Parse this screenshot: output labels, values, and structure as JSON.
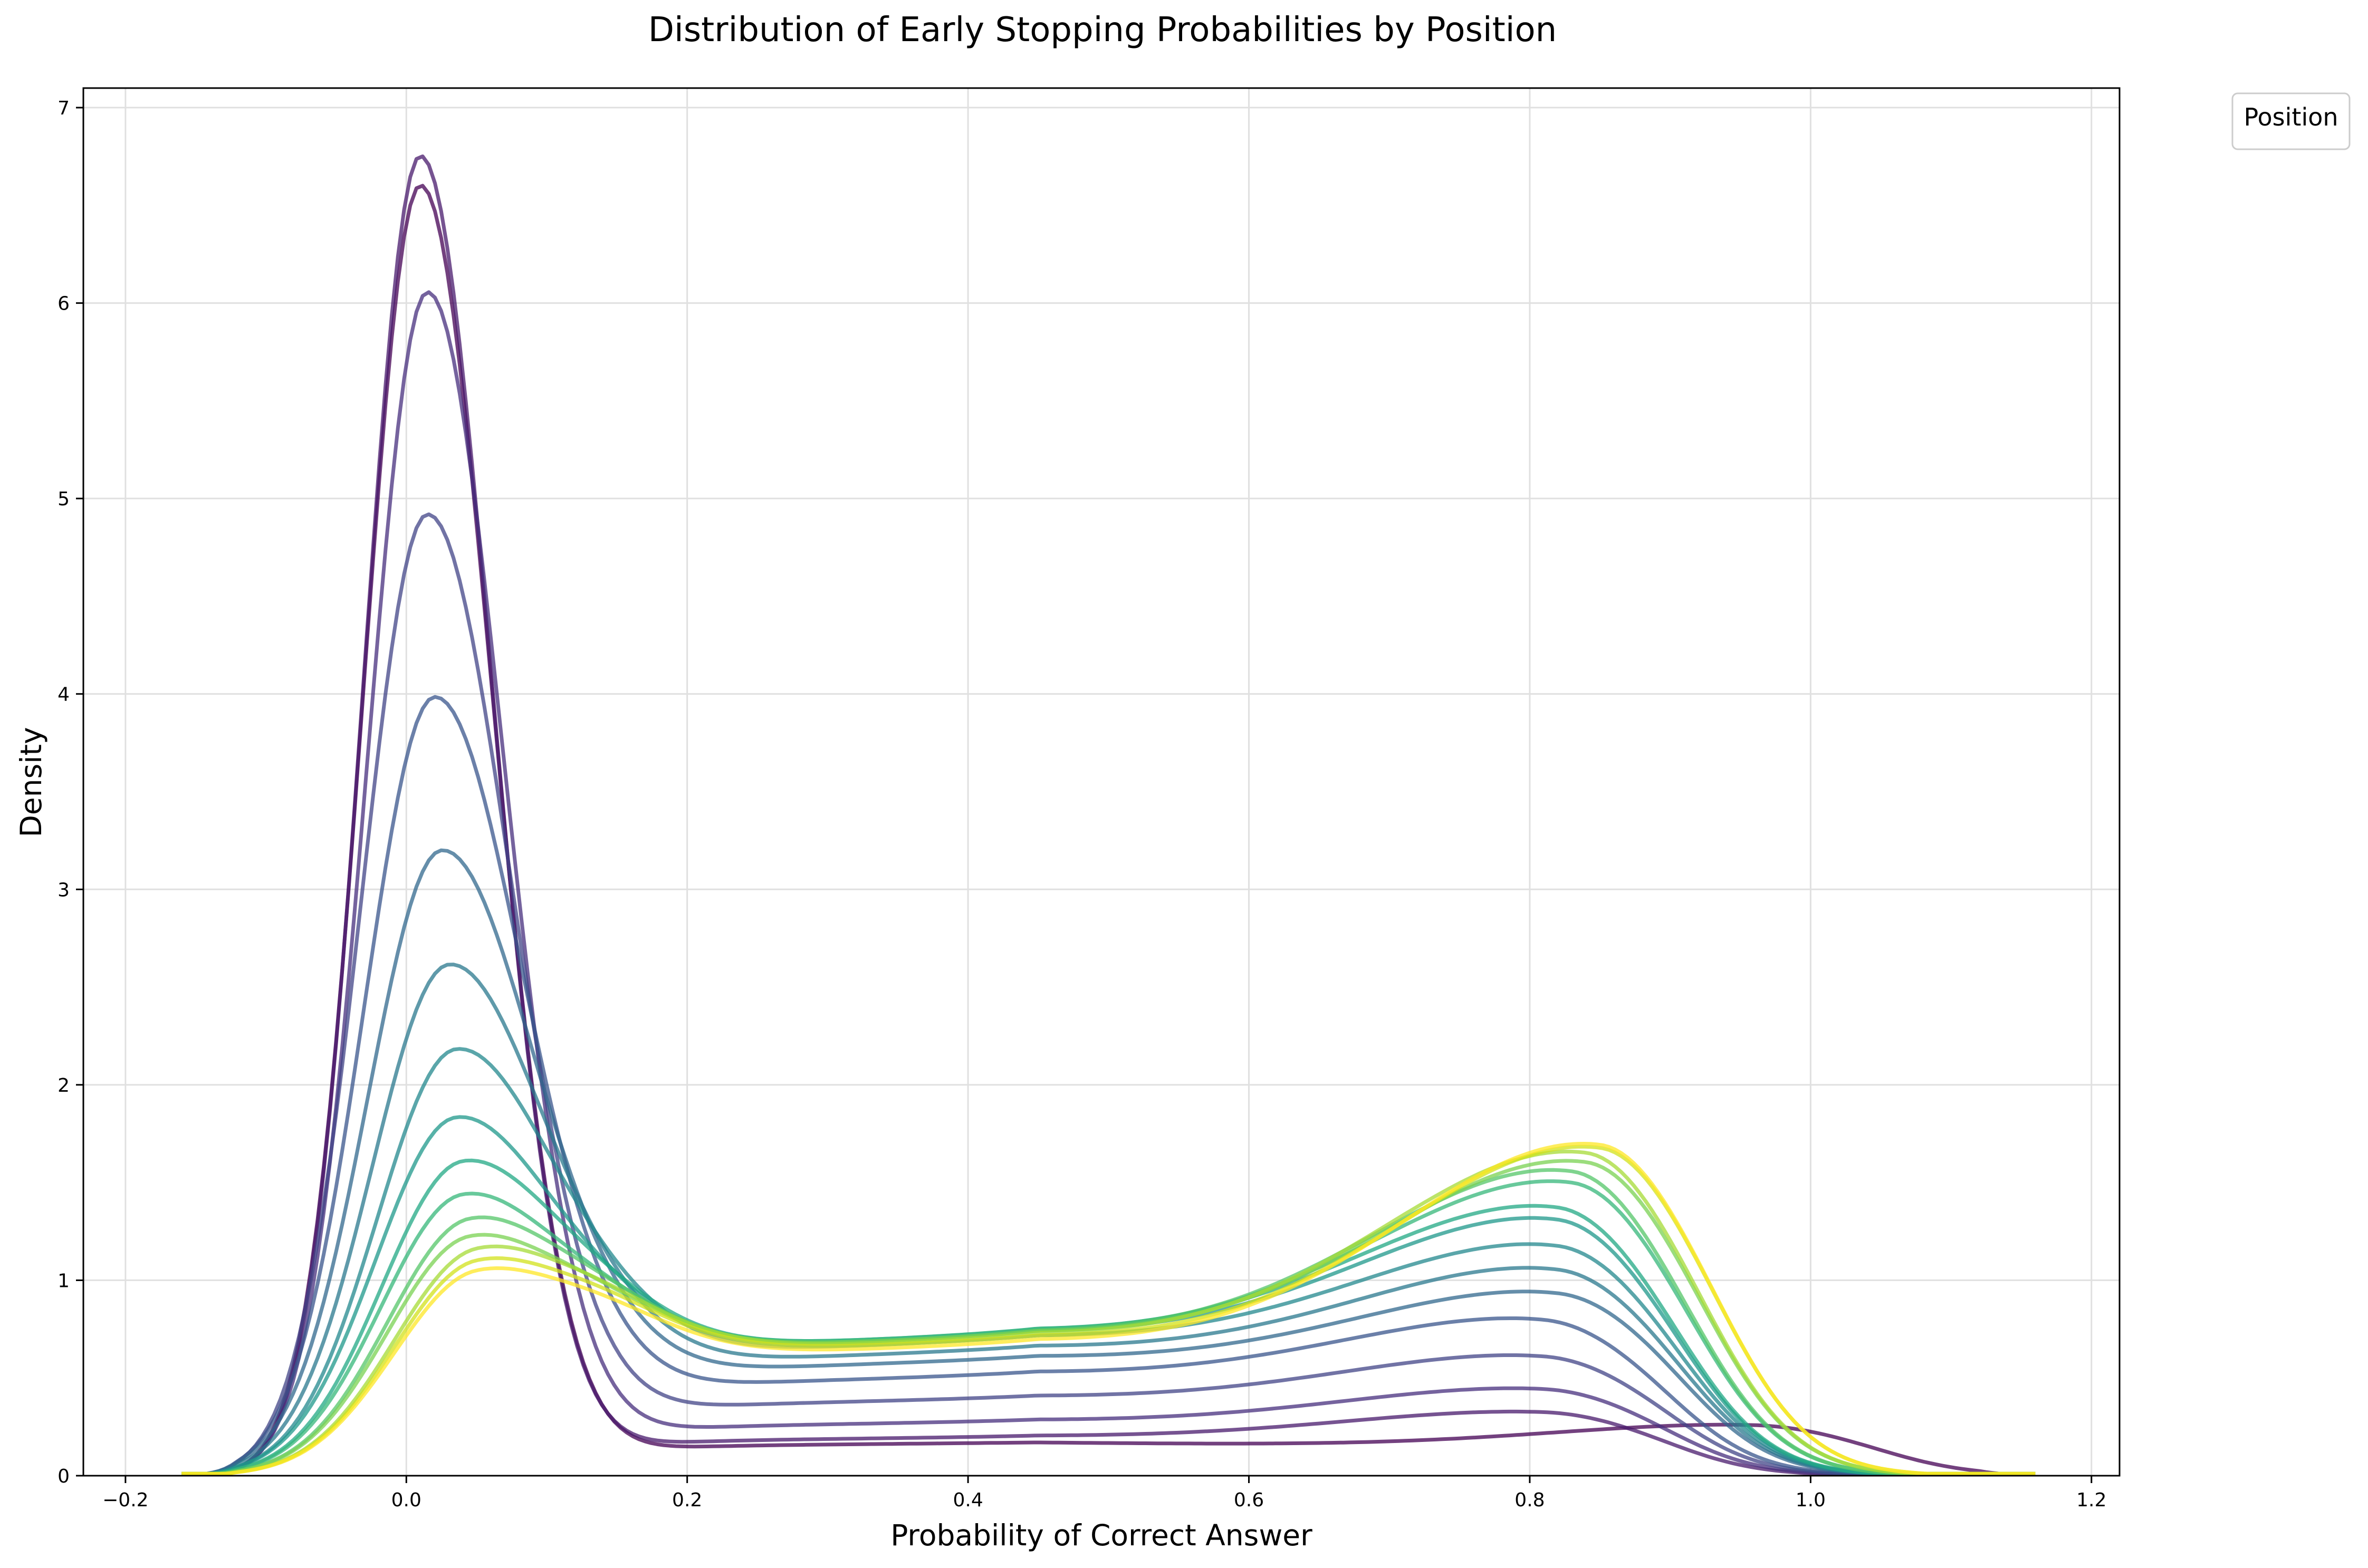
{
  "chart_data": {
    "type": "line",
    "title": "Distribution of Early Stopping Probabilities by Position",
    "xlabel": "Probability of Correct Answer",
    "ylabel": "Density",
    "xlim": [
      -0.23,
      1.22
    ],
    "ylim": [
      0,
      7.1
    ],
    "xticks": [
      -0.2,
      0.0,
      0.2,
      0.4,
      0.6,
      0.8,
      1.0,
      1.2
    ],
    "xtick_labels": [
      "−0.2",
      "0.0",
      "0.2",
      "0.4",
      "0.6",
      "0.8",
      "1.0",
      "1.2"
    ],
    "yticks": [
      0,
      1,
      2,
      3,
      4,
      5,
      6,
      7
    ],
    "ytick_labels": [
      "0",
      "1",
      "2",
      "3",
      "4",
      "5",
      "6",
      "7"
    ],
    "grid": true,
    "legend": {
      "title": "Position",
      "placement": "outside top-right",
      "entries": []
    },
    "colormap": "viridis",
    "series": [
      {
        "color": "#440154",
        "peak_x": 0.01,
        "peak_y": 6.6,
        "right_peak_x": 0.96,
        "right_peak_y": 0.23,
        "trough_y": 0.17
      },
      {
        "color": "#481a6c",
        "peak_x": 0.01,
        "peak_y": 6.75,
        "right_peak_x": 0.81,
        "right_peak_y": 0.28,
        "trough_y": 0.2
      },
      {
        "color": "#472f7d",
        "peak_x": 0.015,
        "peak_y": 6.05,
        "right_peak_x": 0.81,
        "right_peak_y": 0.38,
        "trough_y": 0.28
      },
      {
        "color": "#414487",
        "peak_x": 0.015,
        "peak_y": 4.91,
        "right_peak_x": 0.81,
        "right_peak_y": 0.52,
        "trough_y": 0.4
      },
      {
        "color": "#39568c",
        "peak_x": 0.02,
        "peak_y": 3.97,
        "right_peak_x": 0.81,
        "right_peak_y": 0.68,
        "trough_y": 0.52
      },
      {
        "color": "#31688e",
        "peak_x": 0.025,
        "peak_y": 3.18,
        "right_peak_x": 0.82,
        "right_peak_y": 0.8,
        "trough_y": 0.6
      },
      {
        "color": "#2a788e",
        "peak_x": 0.03,
        "peak_y": 2.59,
        "right_peak_x": 0.82,
        "right_peak_y": 0.91,
        "trough_y": 0.65
      },
      {
        "color": "#23888e",
        "peak_x": 0.035,
        "peak_y": 2.15,
        "right_peak_x": 0.82,
        "right_peak_y": 1.02,
        "trough_y": 0.7
      },
      {
        "color": "#1f988b",
        "peak_x": 0.035,
        "peak_y": 1.8,
        "right_peak_x": 0.82,
        "right_peak_y": 1.15,
        "trough_y": 0.72
      },
      {
        "color": "#22a884",
        "peak_x": 0.04,
        "peak_y": 1.57,
        "right_peak_x": 0.82,
        "right_peak_y": 1.21,
        "trough_y": 0.73
      },
      {
        "color": "#35b779",
        "peak_x": 0.04,
        "peak_y": 1.4,
        "right_peak_x": 0.83,
        "right_peak_y": 1.34,
        "trough_y": 0.73
      },
      {
        "color": "#54c568",
        "peak_x": 0.045,
        "peak_y": 1.27,
        "right_peak_x": 0.83,
        "right_peak_y": 1.4,
        "trough_y": 0.72
      },
      {
        "color": "#7ad151",
        "peak_x": 0.045,
        "peak_y": 1.18,
        "right_peak_x": 0.84,
        "right_peak_y": 1.45,
        "trough_y": 0.72
      },
      {
        "color": "#a5db36",
        "peak_x": 0.05,
        "peak_y": 1.11,
        "right_peak_x": 0.84,
        "right_peak_y": 1.5,
        "trough_y": 0.71
      },
      {
        "color": "#d2e21b",
        "peak_x": 0.05,
        "peak_y": 1.05,
        "right_peak_x": 0.85,
        "right_peak_y": 1.53,
        "trough_y": 0.7
      },
      {
        "color": "#fde725",
        "peak_x": 0.05,
        "peak_y": 1.0,
        "right_peak_x": 0.85,
        "right_peak_y": 1.55,
        "trough_y": 0.68
      }
    ]
  }
}
